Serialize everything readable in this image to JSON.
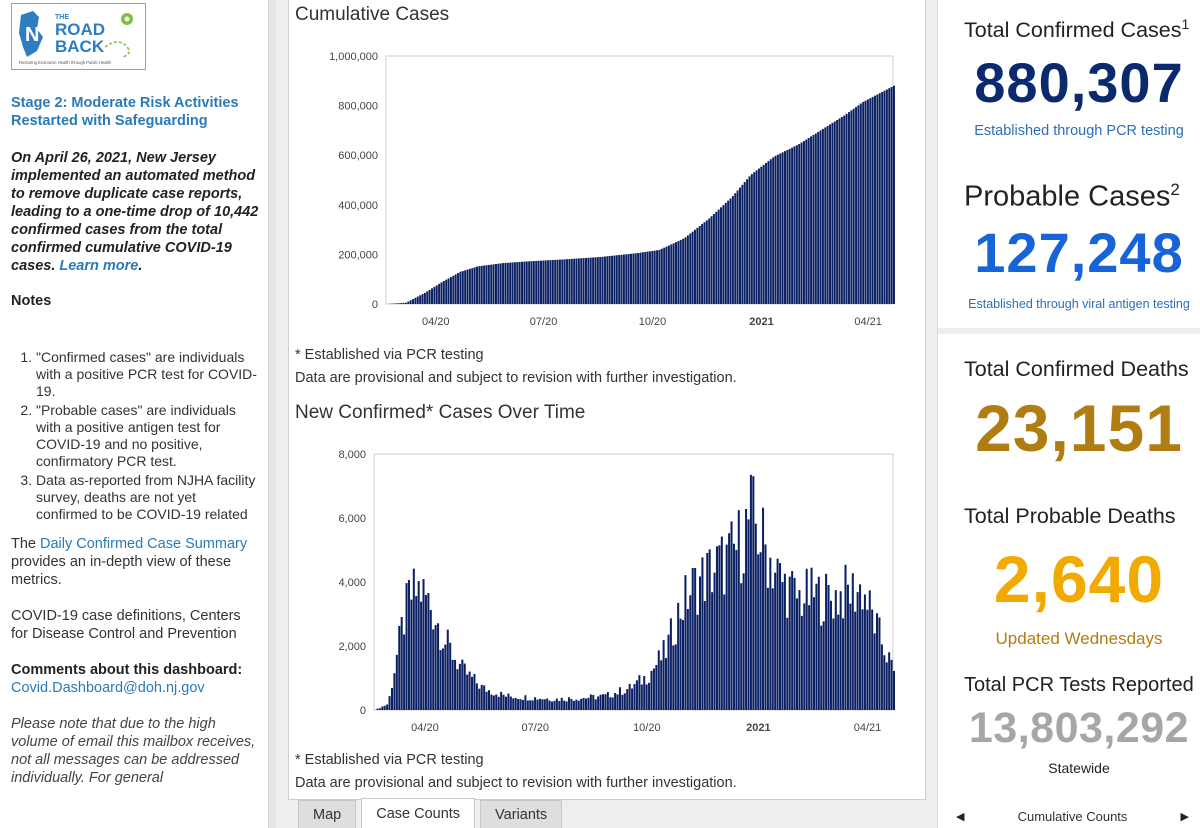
{
  "sidebar": {
    "logo": {
      "top": "THE",
      "line1": "ROAD",
      "line2": "BACK",
      "tagline": "Restoring Economic Health through Public Health"
    },
    "stage_title": "Stage 2: Moderate Risk Activities Restarted with Safeguarding",
    "notice_text": "On April 26, 2021, New Jersey implemented an automated method to remove duplicate case reports, leading to a one-time drop of 10,442 confirmed cases from the total confirmed cumulative COVID-19 cases.",
    "notice_link": "Learn more",
    "notice_end": ".",
    "notes_heading": "Notes",
    "notes": [
      "\"Confirmed cases\" are individuals with a positive PCR test for COVID-19.",
      "\"Probable cases\" are individuals with a positive antigen test for COVID-19 and no positive, confirmatory PCR test.",
      "Data as-reported from NJHA facility survey, deaths are not yet confirmed to be COVID-19 related"
    ],
    "summary_pre": "The ",
    "summary_link": "Daily Confirmed Case Summary",
    "summary_post": " provides an in-depth view of these metrics.",
    "cdc_link": "COVID-19 case definitions, Centers for Disease Control and Prevention",
    "comments_label": "Comments about this dashboard: ",
    "comments_email": "Covid.Dashboard@doh.nj.gov",
    "note_italic": "Please note that due to the high volume of email this mailbox receives, not all messages can be addressed individually. For general"
  },
  "center": {
    "cumulative_title": "Cumulative Cases",
    "cumulative_note1": "* Established via PCR testing",
    "cumulative_note2": "Data are provisional and subject to revision with further investigation.",
    "new_title": "New Confirmed* Cases Over Time",
    "new_note1": "* Established via PCR testing",
    "new_note2": "Data are provisional and subject to revision with further investigation.",
    "bar_color": "#0b2063",
    "tabs": [
      {
        "label": "Map",
        "active": false
      },
      {
        "label": "Case Counts",
        "active": true
      },
      {
        "label": "Variants",
        "active": false
      }
    ]
  },
  "chart_data": [
    {
      "type": "area",
      "title": "Cumulative Cases",
      "x_ticks": [
        "04/20",
        "07/20",
        "10/20",
        "2021",
        "04/21"
      ],
      "x_ticks_bold": [
        "2021"
      ],
      "y_ticks": [
        "0",
        "200,000",
        "400,000",
        "600,000",
        "800,000",
        "1,000,000"
      ],
      "ylim": [
        0,
        1000000
      ],
      "x": [
        "2020-03-04",
        "2020-03-20",
        "2020-04-05",
        "2020-04-20",
        "2020-05-05",
        "2020-05-20",
        "2020-06-10",
        "2020-07-01",
        "2020-08-01",
        "2020-09-01",
        "2020-10-01",
        "2020-10-20",
        "2020-11-10",
        "2020-12-01",
        "2020-12-20",
        "2021-01-05",
        "2021-01-25",
        "2021-02-15",
        "2021-03-05",
        "2021-03-25",
        "2021-04-10",
        "2021-04-26",
        "2021-05-06"
      ],
      "values": [
        0,
        5000,
        45000,
        90000,
        130000,
        152000,
        165000,
        172000,
        180000,
        190000,
        205000,
        218000,
        265000,
        345000,
        430000,
        520000,
        595000,
        645000,
        700000,
        760000,
        815000,
        855000,
        880307
      ]
    },
    {
      "type": "bar",
      "title": "New Confirmed* Cases Over Time",
      "x_ticks": [
        "04/20",
        "07/20",
        "10/20",
        "2021",
        "04/21"
      ],
      "x_ticks_bold": [
        "2021"
      ],
      "y_ticks": [
        "0",
        "2,000",
        "4,000",
        "6,000",
        "8,000"
      ],
      "ylim": [
        0,
        8000
      ],
      "x": [
        "2020-03-04",
        "2020-03-15",
        "2020-03-25",
        "2020-04-01",
        "2020-04-10",
        "2020-04-20",
        "2020-05-01",
        "2020-05-15",
        "2020-06-01",
        "2020-06-20",
        "2020-07-10",
        "2020-08-01",
        "2020-08-20",
        "2020-09-10",
        "2020-09-30",
        "2020-10-15",
        "2020-10-30",
        "2020-11-10",
        "2020-11-20",
        "2020-12-01",
        "2020-12-10",
        "2020-12-20",
        "2021-01-01",
        "2021-01-08",
        "2021-01-20",
        "2021-02-01",
        "2021-02-15",
        "2021-03-01",
        "2021-03-15",
        "2021-03-30",
        "2021-04-10",
        "2021-04-20",
        "2021-05-06"
      ],
      "values": [
        0,
        200,
        2400,
        3600,
        3900,
        3300,
        2200,
        1300,
        700,
        450,
        400,
        350,
        380,
        450,
        700,
        1100,
        1900,
        3200,
        3900,
        4300,
        4600,
        4800,
        5500,
        6300,
        5200,
        4200,
        3600,
        3700,
        3600,
        3800,
        3900,
        2800,
        1200
      ]
    }
  ],
  "kpis": [
    {
      "label": "Total Confirmed Cases",
      "sup": "1",
      "value": "880,307",
      "color": "#0b2a6e",
      "sub": "Established through PCR testing",
      "sub_color": "#2a6fb8"
    },
    {
      "label": "Probable Cases",
      "sup": "2",
      "value": "127,248",
      "color": "#1764d8",
      "sub": "Established through viral antigen testing",
      "sub_color": "#2a6fb8"
    },
    {
      "label": "Total Confirmed Deaths",
      "sup": "",
      "value": "23,151",
      "color": "#b07d12",
      "sub": "",
      "sub_color": ""
    },
    {
      "label": "Total Probable Deaths",
      "sup": "",
      "value": "2,640",
      "color": "#f2a900",
      "sub": "Updated Wednesdays",
      "sub_color": "#b07d12"
    },
    {
      "label": "Total PCR Tests Reported",
      "sup": "",
      "value": "13,803,292",
      "color": "#a6a6a6",
      "sub": "Statewide",
      "sub_color": "#222222"
    }
  ],
  "bottom_nav": {
    "label": "Cumulative Counts",
    "prev_icon": "triangle-left-icon",
    "next_icon": "triangle-right-icon"
  }
}
